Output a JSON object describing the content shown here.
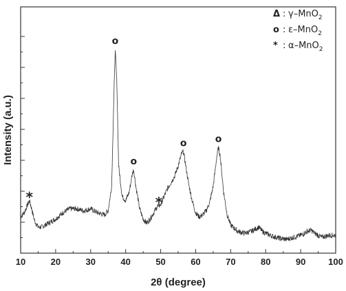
{
  "chart_data": {
    "type": "line",
    "xlabel": "2θ (degree)",
    "ylabel": "Intensity (a.u.)",
    "xlim": [
      10,
      100
    ],
    "ylim": [
      0,
      100
    ],
    "xticks": [
      "10",
      "20",
      "30",
      "40",
      "50",
      "60",
      "70",
      "80",
      "90",
      "100"
    ],
    "y_tick_labels_shown": false,
    "grid": false,
    "legend_position": "top-right",
    "legend": [
      {
        "marker": "Δ",
        "phase": "γ–MnO",
        "subscript": "2"
      },
      {
        "marker": "o",
        "phase": "ε–MnO",
        "subscript": "2"
      },
      {
        "marker": "*",
        "phase": "α–MnO",
        "subscript": "2"
      }
    ],
    "peak_markers": [
      {
        "symbol": "*",
        "x": 12.5
      },
      {
        "symbol": "o",
        "x": 37.0
      },
      {
        "symbol": "o",
        "x": 42.3
      },
      {
        "symbol": "*",
        "x": 49.5
      },
      {
        "symbol": "o",
        "x": 56.5
      },
      {
        "symbol": "o",
        "x": 66.5
      }
    ],
    "series": [
      {
        "x": [
          10,
          11,
          12,
          12.5,
          13,
          14,
          15,
          16,
          18,
          20,
          22,
          24,
          26,
          28,
          30,
          32,
          34,
          35,
          36,
          36.5,
          37,
          37.5,
          38,
          39,
          40,
          41,
          42,
          42.3,
          43,
          44,
          45,
          46,
          47,
          48,
          49,
          50,
          51,
          52,
          53,
          54,
          55,
          56,
          56.5,
          57,
          58,
          59,
          60,
          61,
          62,
          63,
          64,
          65,
          66,
          66.5,
          67,
          68,
          69,
          70,
          72,
          74,
          76,
          78,
          79,
          80,
          82,
          84,
          86,
          88,
          90,
          92,
          93,
          94,
          96,
          98,
          100
        ],
        "y": [
          10,
          12,
          16,
          18,
          15,
          8,
          5,
          5,
          7,
          9,
          12,
          14,
          14,
          13,
          14,
          12,
          11,
          13,
          25,
          60,
          92,
          75,
          35,
          20,
          18,
          22,
          32,
          33,
          24,
          14,
          9,
          7,
          9,
          12,
          15,
          16,
          20,
          24,
          27,
          30,
          35,
          41,
          42,
          37,
          26,
          18,
          12,
          10,
          11,
          13,
          17,
          25,
          39,
          44,
          40,
          22,
          11,
          6,
          3,
          2,
          3,
          5,
          3,
          2,
          0.5,
          -0.5,
          -1,
          0,
          1,
          3,
          3.5,
          2,
          0,
          1,
          1
        ]
      }
    ]
  }
}
